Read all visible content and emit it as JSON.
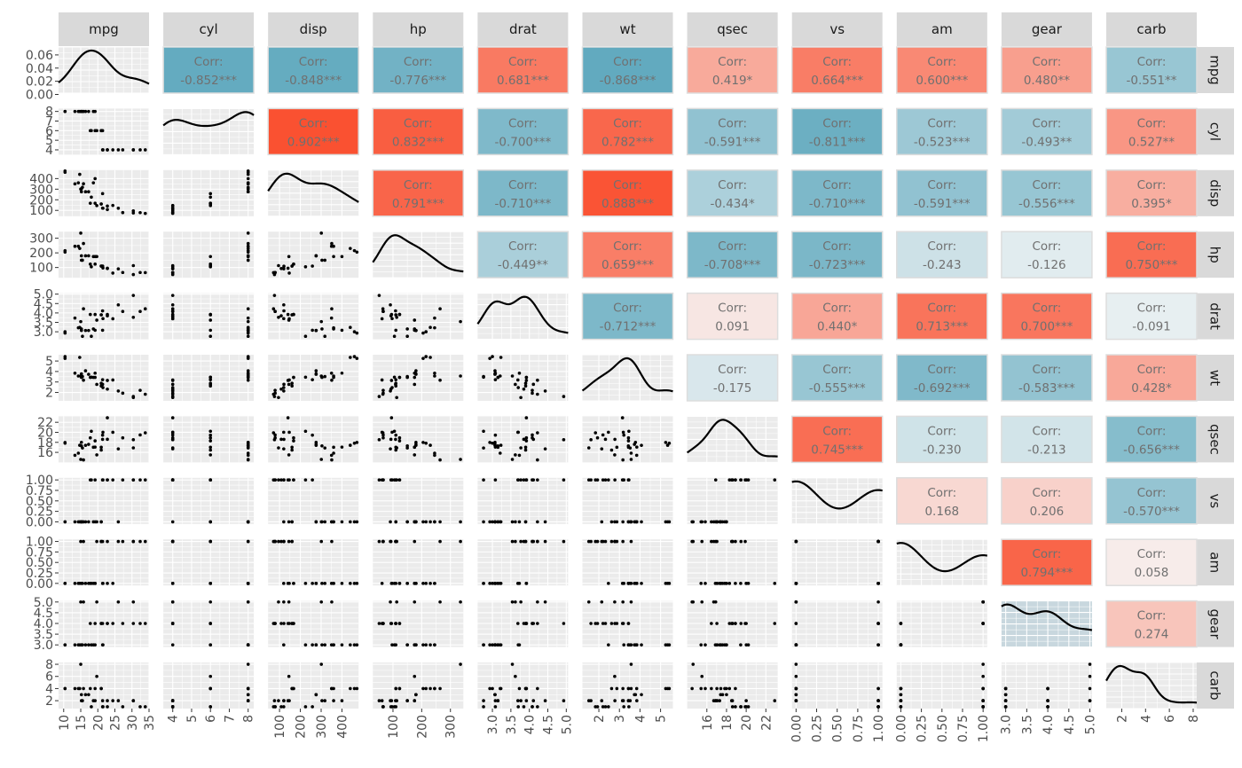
{
  "chart_data": {
    "type": "scatter-matrix",
    "variables": [
      "mpg",
      "cyl",
      "disp",
      "hp",
      "drat",
      "wt",
      "qsec",
      "vs",
      "am",
      "gear",
      "carb"
    ],
    "corr_prefix": "Corr:",
    "correlations": {
      "0-1": "-0.852***",
      "0-2": "-0.848***",
      "0-3": "-0.776***",
      "0-4": "0.681***",
      "0-5": "-0.868***",
      "0-6": "0.419*",
      "0-7": "0.664***",
      "0-8": "0.600***",
      "0-9": "0.480**",
      "0-10": "-0.551**",
      "1-2": "0.902***",
      "1-3": "0.832***",
      "1-4": "-0.700***",
      "1-5": "0.782***",
      "1-6": "-0.591***",
      "1-7": "-0.811***",
      "1-8": "-0.523***",
      "1-9": "-0.493**",
      "1-10": "0.527**",
      "2-3": "0.791***",
      "2-4": "-0.710***",
      "2-5": "0.888***",
      "2-6": "-0.434*",
      "2-7": "-0.710***",
      "2-8": "-0.591***",
      "2-9": "-0.556***",
      "2-10": "0.395*",
      "3-4": "-0.449**",
      "3-5": "0.659***",
      "3-6": "-0.708***",
      "3-7": "-0.723***",
      "3-8": "-0.243",
      "3-9": "-0.126",
      "3-10": "0.750***",
      "4-5": "-0.712***",
      "4-6": "0.091",
      "4-7": "0.440*",
      "4-8": "0.713***",
      "4-9": "0.700***",
      "4-10": "-0.091",
      "5-6": "-0.175",
      "5-7": "-0.555***",
      "5-8": "-0.692***",
      "5-9": "-0.583***",
      "5-10": "0.428*",
      "6-7": "0.745***",
      "6-8": "-0.230",
      "6-9": "-0.213",
      "6-10": "-0.656***",
      "7-8": "0.168",
      "7-9": "0.206",
      "7-10": "-0.570***",
      "8-9": "0.794***",
      "8-10": "0.058",
      "9-10": "0.274"
    },
    "axis_ranges": {
      "mpg": [
        8.5,
        35
      ],
      "cyl": [
        3.5,
        8.3
      ],
      "disp": [
        45,
        480
      ],
      "hp": [
        30,
        345
      ],
      "drat": [
        2.6,
        5.05
      ],
      "wt": [
        1.2,
        5.6
      ],
      "qsec": [
        14,
        23.2
      ],
      "vs": [
        -0.05,
        1.05
      ],
      "am": [
        -0.05,
        1.05
      ],
      "gear": [
        2.9,
        5.05
      ],
      "carb": [
        0.7,
        8.3
      ]
    },
    "y_ticks": {
      "mpg": [
        "0.00",
        "0.02",
        "0.04",
        "0.06"
      ],
      "cyl": [
        "4",
        "5",
        "6",
        "7",
        "8"
      ],
      "disp": [
        "100",
        "200",
        "300",
        "400"
      ],
      "hp": [
        "100",
        "200",
        "300"
      ],
      "drat": [
        "3.0",
        "3.5",
        "4.0",
        "4.5",
        "5.0"
      ],
      "wt": [
        "2",
        "3",
        "4",
        "5"
      ],
      "qsec": [
        "16",
        "18",
        "20",
        "22"
      ],
      "vs": [
        "0.00",
        "0.25",
        "0.50",
        "0.75",
        "1.00"
      ],
      "am": [
        "0.00",
        "0.25",
        "0.50",
        "0.75",
        "1.00"
      ],
      "gear": [
        "3.0",
        "3.5",
        "4.0",
        "4.5",
        "5.0"
      ],
      "carb": [
        "2",
        "4",
        "6",
        "8"
      ]
    },
    "x_ticks": {
      "mpg": [
        "10",
        "15",
        "20",
        "25",
        "30",
        "35"
      ],
      "cyl": [
        "4",
        "5",
        "6",
        "7",
        "8"
      ],
      "disp": [
        "100",
        "200",
        "300",
        "400"
      ],
      "hp": [
        "100",
        "200",
        "300"
      ],
      "drat": [
        "3.0",
        "3.5",
        "4.0",
        "4.5",
        "5.0"
      ],
      "wt": [
        "2",
        "3",
        "4",
        "5"
      ],
      "qsec": [
        "16",
        "18",
        "20",
        "22"
      ],
      "vs": [
        "0.00",
        "0.25",
        "0.50",
        "0.75",
        "1.00"
      ],
      "am": [
        "0.00",
        "0.25",
        "0.50",
        "0.75",
        "1.00"
      ],
      "gear": [
        "3.0",
        "3.5",
        "4.0",
        "4.5",
        "5.0"
      ],
      "carb": [
        "2",
        "4",
        "6",
        "8"
      ]
    },
    "observations": {
      "mpg": [
        21,
        21,
        22.8,
        21.4,
        18.7,
        18.1,
        14.3,
        24.4,
        22.8,
        19.2,
        17.8,
        16.4,
        17.3,
        15.2,
        10.4,
        10.4,
        14.7,
        32.4,
        30.4,
        33.9,
        21.5,
        15.5,
        15.2,
        13.3,
        19.2,
        27.3,
        26,
        30.4,
        15.8,
        19.7,
        15,
        21.4
      ],
      "cyl": [
        6,
        6,
        4,
        6,
        8,
        6,
        8,
        4,
        4,
        6,
        6,
        8,
        8,
        8,
        8,
        8,
        8,
        4,
        4,
        4,
        4,
        8,
        8,
        8,
        8,
        4,
        4,
        4,
        8,
        6,
        8,
        4
      ],
      "disp": [
        160,
        160,
        108,
        258,
        360,
        225,
        360,
        146.7,
        140.8,
        167.6,
        167.6,
        275.8,
        275.8,
        275.8,
        472,
        460,
        440,
        78.7,
        75.7,
        71.1,
        120.1,
        318,
        304,
        350,
        400,
        79,
        120.3,
        95.1,
        351,
        145,
        301,
        121
      ],
      "hp": [
        110,
        110,
        93,
        110,
        175,
        105,
        245,
        62,
        95,
        123,
        123,
        180,
        180,
        180,
        205,
        215,
        230,
        66,
        52,
        65,
        97,
        150,
        150,
        245,
        175,
        66,
        91,
        113,
        264,
        175,
        335,
        109
      ],
      "drat": [
        3.9,
        3.9,
        3.85,
        3.08,
        3.15,
        2.76,
        3.21,
        3.69,
        3.92,
        3.92,
        3.92,
        3.07,
        3.07,
        3.07,
        2.93,
        3,
        3.23,
        4.08,
        4.93,
        4.22,
        3.7,
        2.76,
        3.15,
        3.73,
        3.08,
        4.08,
        4.43,
        3.77,
        4.22,
        3.62,
        3.54,
        4.11
      ],
      "wt": [
        2.62,
        2.875,
        2.32,
        3.215,
        3.44,
        3.46,
        3.57,
        3.19,
        3.15,
        3.44,
        3.44,
        4.07,
        3.73,
        3.78,
        5.25,
        5.424,
        5.345,
        2.2,
        1.615,
        1.835,
        2.465,
        3.52,
        3.435,
        3.84,
        3.845,
        1.935,
        2.14,
        1.513,
        3.17,
        2.77,
        3.57,
        2.78
      ],
      "qsec": [
        16.46,
        17.02,
        18.61,
        19.44,
        17.02,
        20.22,
        15.84,
        20,
        22.9,
        18.3,
        18.9,
        17.4,
        17.6,
        18,
        17.98,
        17.82,
        17.42,
        19.47,
        18.52,
        19.9,
        20.01,
        16.87,
        17.3,
        15.41,
        17.05,
        18.9,
        16.7,
        16.9,
        14.5,
        15.5,
        14.6,
        18.6
      ],
      "vs": [
        0,
        0,
        1,
        1,
        0,
        1,
        0,
        1,
        1,
        1,
        1,
        0,
        0,
        0,
        0,
        0,
        0,
        1,
        1,
        1,
        1,
        0,
        0,
        0,
        0,
        1,
        0,
        1,
        0,
        0,
        0,
        1
      ],
      "am": [
        1,
        1,
        1,
        0,
        0,
        0,
        0,
        0,
        0,
        0,
        0,
        0,
        0,
        0,
        0,
        0,
        0,
        1,
        1,
        1,
        0,
        0,
        0,
        0,
        0,
        1,
        1,
        1,
        1,
        1,
        1,
        1
      ],
      "gear": [
        4,
        4,
        4,
        3,
        3,
        3,
        3,
        4,
        4,
        4,
        4,
        3,
        3,
        3,
        3,
        3,
        3,
        4,
        4,
        4,
        3,
        3,
        3,
        3,
        3,
        4,
        5,
        5,
        5,
        5,
        5,
        4
      ],
      "carb": [
        4,
        4,
        1,
        1,
        2,
        1,
        4,
        2,
        2,
        4,
        4,
        3,
        3,
        3,
        4,
        4,
        4,
        1,
        2,
        1,
        1,
        2,
        2,
        4,
        2,
        1,
        2,
        2,
        4,
        6,
        8,
        2
      ]
    },
    "colors": {
      "strip_bg": "#d9d9d9",
      "panel_bg": "#ebebeb",
      "grid": "#ffffff",
      "points": "#000000",
      "corr_negative": "#4b9eb6",
      "corr_neutral": "#f7f7f7",
      "corr_positive": "#fa3f1c",
      "corr_text": "#707070"
    },
    "grid": true
  }
}
